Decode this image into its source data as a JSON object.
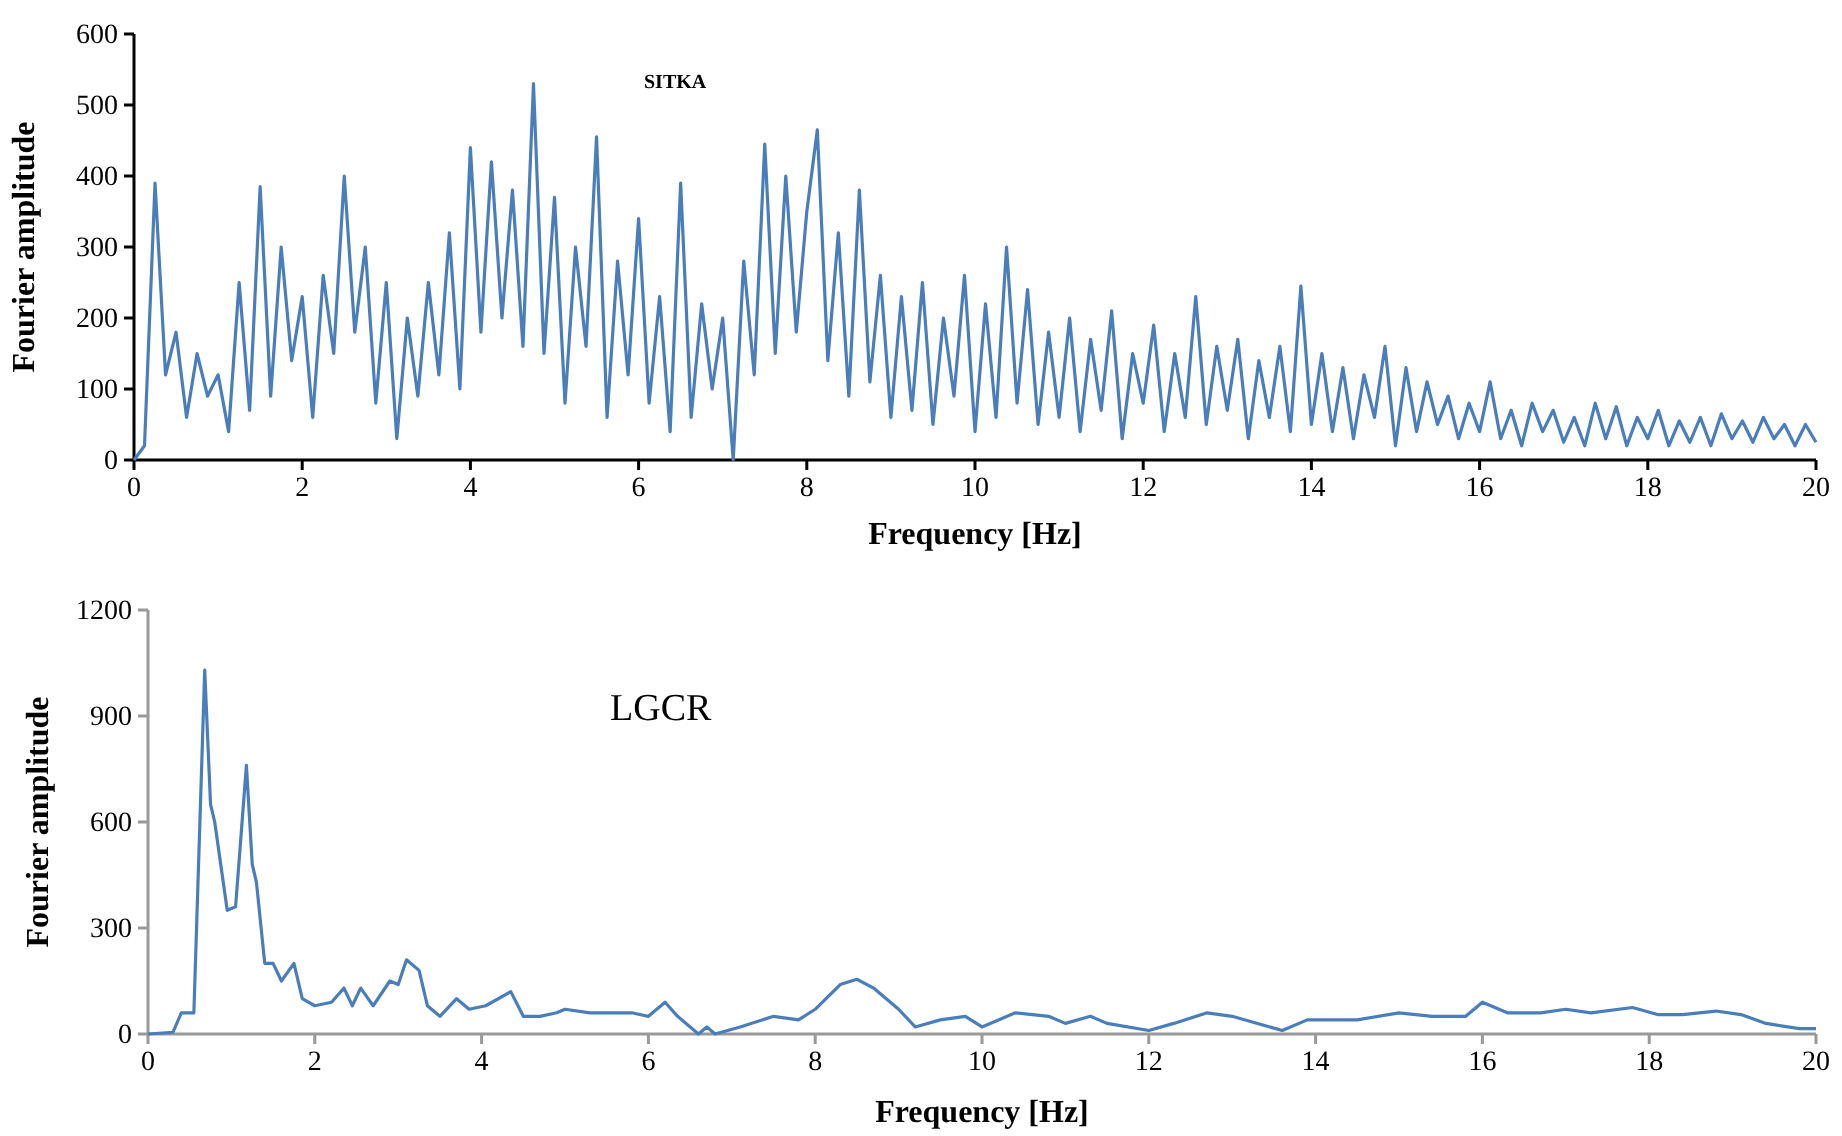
{
  "chart_data": [
    {
      "type": "line",
      "xlabel": "Frequency [Hz]",
      "ylabel": "Fourier amplitude",
      "annotations": [
        "SITKA"
      ],
      "xlim": [
        0,
        20
      ],
      "xticks": [
        0,
        2,
        4,
        6,
        8,
        10,
        12,
        14,
        16,
        18,
        20
      ],
      "ylim": [
        0,
        600
      ],
      "yticks": [
        0,
        100,
        200,
        300,
        400,
        500,
        600
      ],
      "grid": false,
      "marker": "none",
      "line_style": "solid",
      "series": [
        {
          "color": "#4a7ebb",
          "x": [
            0,
            0.125,
            0.25,
            0.375,
            0.5,
            0.625,
            0.75,
            0.875,
            1,
            1.125,
            1.25,
            1.375,
            1.5,
            1.625,
            1.75,
            1.875,
            2,
            2.125,
            2.25,
            2.375,
            2.5,
            2.625,
            2.75,
            2.875,
            3,
            3.125,
            3.25,
            3.375,
            3.5,
            3.625,
            3.75,
            3.875,
            4,
            4.125,
            4.25,
            4.375,
            4.5,
            4.625,
            4.75,
            4.875,
            5,
            5.125,
            5.25,
            5.375,
            5.5,
            5.625,
            5.75,
            5.875,
            6,
            6.125,
            6.25,
            6.375,
            6.5,
            6.625,
            6.75,
            6.875,
            7,
            7.125,
            7.25,
            7.375,
            7.5,
            7.625,
            7.75,
            7.875,
            8,
            8.125,
            8.25,
            8.375,
            8.5,
            8.625,
            8.75,
            8.875,
            9,
            9.125,
            9.25,
            9.375,
            9.5,
            9.625,
            9.75,
            9.875,
            10,
            10.125,
            10.25,
            10.375,
            10.5,
            10.625,
            10.75,
            10.875,
            11,
            11.125,
            11.25,
            11.375,
            11.5,
            11.625,
            11.75,
            11.875,
            12,
            12.125,
            12.25,
            12.375,
            12.5,
            12.625,
            12.75,
            12.875,
            13,
            13.125,
            13.25,
            13.375,
            13.5,
            13.625,
            13.75,
            13.875,
            14,
            14.125,
            14.25,
            14.375,
            14.5,
            14.625,
            14.75,
            14.875,
            15,
            15.125,
            15.25,
            15.375,
            15.5,
            15.625,
            15.75,
            15.875,
            16,
            16.125,
            16.25,
            16.375,
            16.5,
            16.625,
            16.75,
            16.875,
            17,
            17.125,
            17.25,
            17.375,
            17.5,
            17.625,
            17.75,
            17.875,
            18,
            18.125,
            18.25,
            18.375,
            18.5,
            18.625,
            18.75,
            18.875,
            19,
            19.125,
            19.25,
            19.375,
            19.5,
            19.625,
            19.75,
            19.875,
            20
          ],
          "values": [
            0,
            20,
            390,
            120,
            180,
            60,
            150,
            90,
            120,
            40,
            250,
            70,
            385,
            90,
            300,
            140,
            230,
            60,
            260,
            150,
            400,
            180,
            300,
            80,
            250,
            30,
            200,
            90,
            250,
            120,
            320,
            100,
            440,
            180,
            420,
            200,
            380,
            160,
            530,
            150,
            370,
            80,
            300,
            160,
            455,
            60,
            280,
            120,
            340,
            80,
            230,
            40,
            390,
            60,
            220,
            100,
            200,
            0,
            280,
            120,
            445,
            150,
            400,
            180,
            350,
            465,
            140,
            320,
            90,
            380,
            110,
            260,
            60,
            230,
            70,
            250,
            50,
            200,
            90,
            260,
            40,
            220,
            60,
            300,
            80,
            240,
            50,
            180,
            60,
            200,
            40,
            170,
            70,
            210,
            30,
            150,
            80,
            190,
            40,
            150,
            60,
            230,
            50,
            160,
            70,
            170,
            30,
            140,
            60,
            160,
            40,
            245,
            50,
            150,
            40,
            130,
            30,
            120,
            60,
            160,
            20,
            130,
            40,
            110,
            50,
            90,
            30,
            80,
            40,
            110,
            30,
            70,
            20,
            80,
            40,
            70,
            25,
            60,
            20,
            80,
            30,
            75,
            20,
            60,
            30,
            70,
            20,
            55,
            25,
            60,
            20,
            65,
            30,
            55,
            25,
            60,
            30,
            50,
            20,
            50,
            25
          ]
        }
      ]
    },
    {
      "type": "line",
      "xlabel": "Frequency [Hz]",
      "ylabel": "Fourier amplitude",
      "annotations": [
        "LGCR"
      ],
      "xlim": [
        0,
        20
      ],
      "xticks": [
        0,
        2,
        4,
        6,
        8,
        10,
        12,
        14,
        16,
        18,
        20
      ],
      "ylim": [
        0,
        1200
      ],
      "yticks": [
        0,
        300,
        600,
        900,
        1200
      ],
      "grid": false,
      "marker": "none",
      "line_style": "solid",
      "series": [
        {
          "color": "#4a7ebb",
          "x": [
            0,
            0.3,
            0.4,
            0.55,
            0.68,
            0.75,
            0.8,
            0.95,
            1.05,
            1.18,
            1.25,
            1.3,
            1.4,
            1.5,
            1.6,
            1.75,
            1.85,
            2,
            2.2,
            2.35,
            2.45,
            2.55,
            2.7,
            2.9,
            3,
            3.1,
            3.25,
            3.35,
            3.5,
            3.7,
            3.85,
            4.05,
            4.35,
            4.5,
            4.7,
            4.9,
            5,
            5.3,
            5.5,
            5.8,
            6,
            6.2,
            6.35,
            6.6,
            6.7,
            6.8,
            7.1,
            7.5,
            7.8,
            8,
            8.3,
            8.5,
            8.7,
            9,
            9.2,
            9.5,
            9.8,
            10,
            10.4,
            10.8,
            11,
            11.3,
            11.5,
            12,
            12.3,
            12.7,
            13,
            13.6,
            13.9,
            14.2,
            14.5,
            15,
            15.4,
            15.8,
            16,
            16.3,
            16.7,
            17,
            17.3,
            17.8,
            18.1,
            18.4,
            18.8,
            19.1,
            19.4,
            19.8,
            20
          ],
          "values": [
            0,
            5,
            60,
            60,
            1030,
            650,
            600,
            350,
            360,
            760,
            480,
            430,
            200,
            200,
            150,
            200,
            100,
            80,
            90,
            130,
            80,
            130,
            80,
            150,
            140,
            210,
            180,
            80,
            50,
            100,
            70,
            80,
            120,
            50,
            50,
            60,
            70,
            60,
            60,
            60,
            50,
            90,
            50,
            0,
            20,
            0,
            20,
            50,
            40,
            70,
            140,
            155,
            130,
            70,
            20,
            40,
            50,
            20,
            60,
            50,
            30,
            50,
            30,
            10,
            30,
            60,
            50,
            10,
            40,
            40,
            40,
            60,
            50,
            50,
            90,
            60,
            60,
            70,
            60,
            75,
            55,
            55,
            65,
            55,
            30,
            15,
            15
          ]
        }
      ]
    }
  ]
}
